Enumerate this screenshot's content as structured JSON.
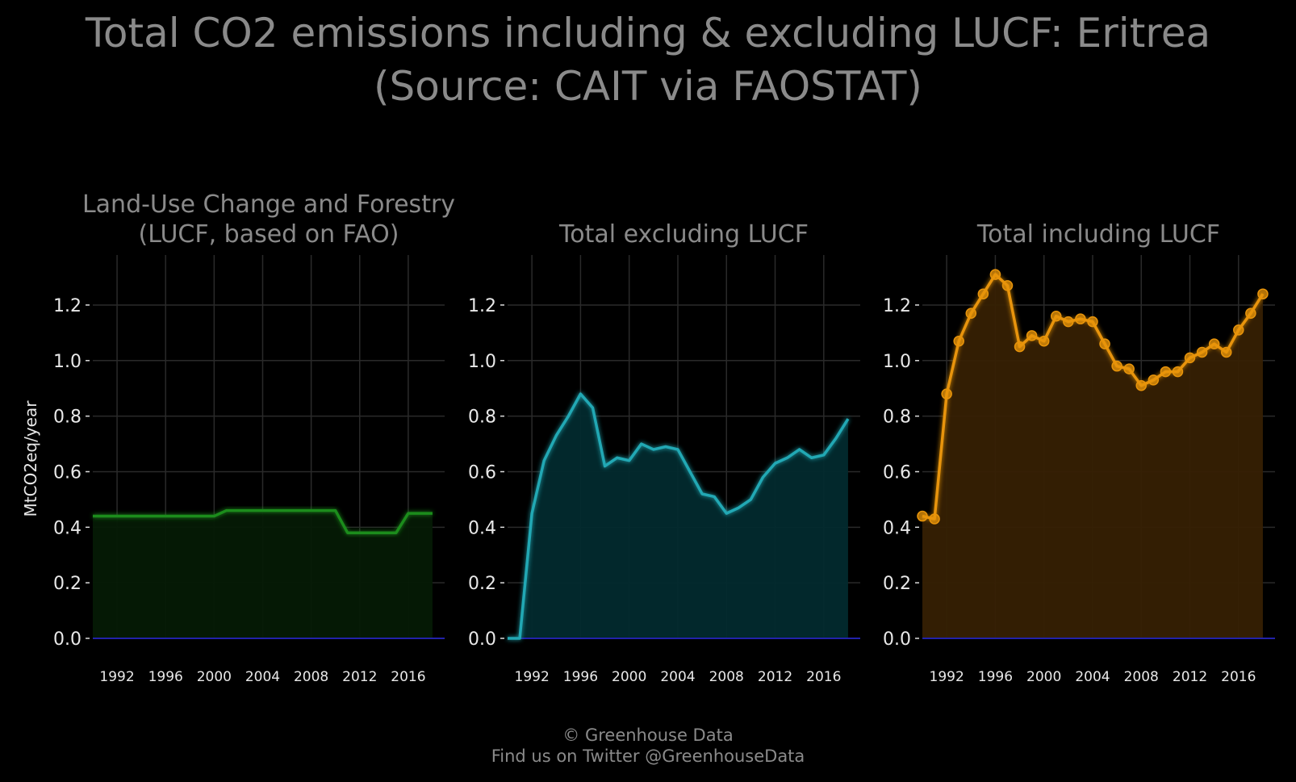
{
  "title_line1": "Total CO2 emissions including & excluding LUCF: Eritrea",
  "title_line2": "(Source: CAIT via FAOSTAT)",
  "footer_line1": "© Greenhouse Data",
  "footer_line2": "Find us on Twitter @GreenhouseData",
  "chart_data": [
    {
      "type": "area",
      "title": "Land-Use Change and Forestry\n(LUCF, based on FAO)",
      "ylabel": "MtCO2eq/year",
      "color": "#1a8c1a",
      "fill": "#051a05",
      "markers": false,
      "x": [
        1990,
        1991,
        1992,
        1993,
        1994,
        1995,
        1996,
        1997,
        1998,
        1999,
        2000,
        2001,
        2002,
        2003,
        2004,
        2005,
        2006,
        2007,
        2008,
        2009,
        2010,
        2011,
        2012,
        2013,
        2014,
        2015,
        2016,
        2017,
        2018
      ],
      "values": [
        0.44,
        0.44,
        0.44,
        0.44,
        0.44,
        0.44,
        0.44,
        0.44,
        0.44,
        0.44,
        0.44,
        0.46,
        0.46,
        0.46,
        0.46,
        0.46,
        0.46,
        0.46,
        0.46,
        0.46,
        0.46,
        0.38,
        0.38,
        0.38,
        0.38,
        0.38,
        0.45,
        0.45,
        0.45
      ],
      "xlim": [
        1990,
        2019
      ],
      "ylim": [
        0,
        1.38
      ],
      "xticks": [
        1992,
        1996,
        2000,
        2004,
        2008,
        2012,
        2016
      ],
      "yticks": [
        "0.0",
        "0.2",
        "0.4",
        "0.6",
        "0.8",
        "1.0",
        "1.2"
      ]
    },
    {
      "type": "area",
      "title": "Total excluding LUCF",
      "ylabel": "",
      "color": "#20a8b4",
      "fill": "#022a2e",
      "markers": false,
      "x": [
        1990,
        1991,
        1992,
        1993,
        1994,
        1995,
        1996,
        1997,
        1998,
        1999,
        2000,
        2001,
        2002,
        2003,
        2004,
        2005,
        2006,
        2007,
        2008,
        2009,
        2010,
        2011,
        2012,
        2013,
        2014,
        2015,
        2016,
        2017,
        2018
      ],
      "values": [
        0.0,
        0.0,
        0.45,
        0.64,
        0.73,
        0.8,
        0.88,
        0.83,
        0.62,
        0.65,
        0.64,
        0.7,
        0.68,
        0.69,
        0.68,
        0.6,
        0.52,
        0.51,
        0.45,
        0.47,
        0.5,
        0.58,
        0.63,
        0.65,
        0.68,
        0.65,
        0.66,
        0.72,
        0.79
      ],
      "xlim": [
        1990,
        2019
      ],
      "ylim": [
        0,
        1.38
      ],
      "xticks": [
        1992,
        1996,
        2000,
        2004,
        2008,
        2012,
        2016
      ],
      "yticks": [
        "0.0",
        "0.2",
        "0.4",
        "0.6",
        "0.8",
        "1.0",
        "1.2"
      ]
    },
    {
      "type": "area",
      "title": "Total including LUCF",
      "ylabel": "",
      "color": "#e8940a",
      "fill": "#362003",
      "markers": true,
      "x": [
        1990,
        1991,
        1992,
        1993,
        1994,
        1995,
        1996,
        1997,
        1998,
        1999,
        2000,
        2001,
        2002,
        2003,
        2004,
        2005,
        2006,
        2007,
        2008,
        2009,
        2010,
        2011,
        2012,
        2013,
        2014,
        2015,
        2016,
        2017,
        2018
      ],
      "values": [
        0.44,
        0.43,
        0.88,
        1.07,
        1.17,
        1.24,
        1.31,
        1.27,
        1.05,
        1.09,
        1.07,
        1.16,
        1.14,
        1.15,
        1.14,
        1.06,
        0.98,
        0.97,
        0.91,
        0.93,
        0.96,
        0.96,
        1.01,
        1.03,
        1.06,
        1.03,
        1.11,
        1.17,
        1.24
      ],
      "xlim": [
        1990,
        2019
      ],
      "ylim": [
        0,
        1.38
      ],
      "xticks": [
        1992,
        1996,
        2000,
        2004,
        2008,
        2012,
        2016
      ],
      "yticks": [
        "0.0",
        "0.2",
        "0.4",
        "0.6",
        "0.8",
        "1.0",
        "1.2"
      ]
    }
  ]
}
